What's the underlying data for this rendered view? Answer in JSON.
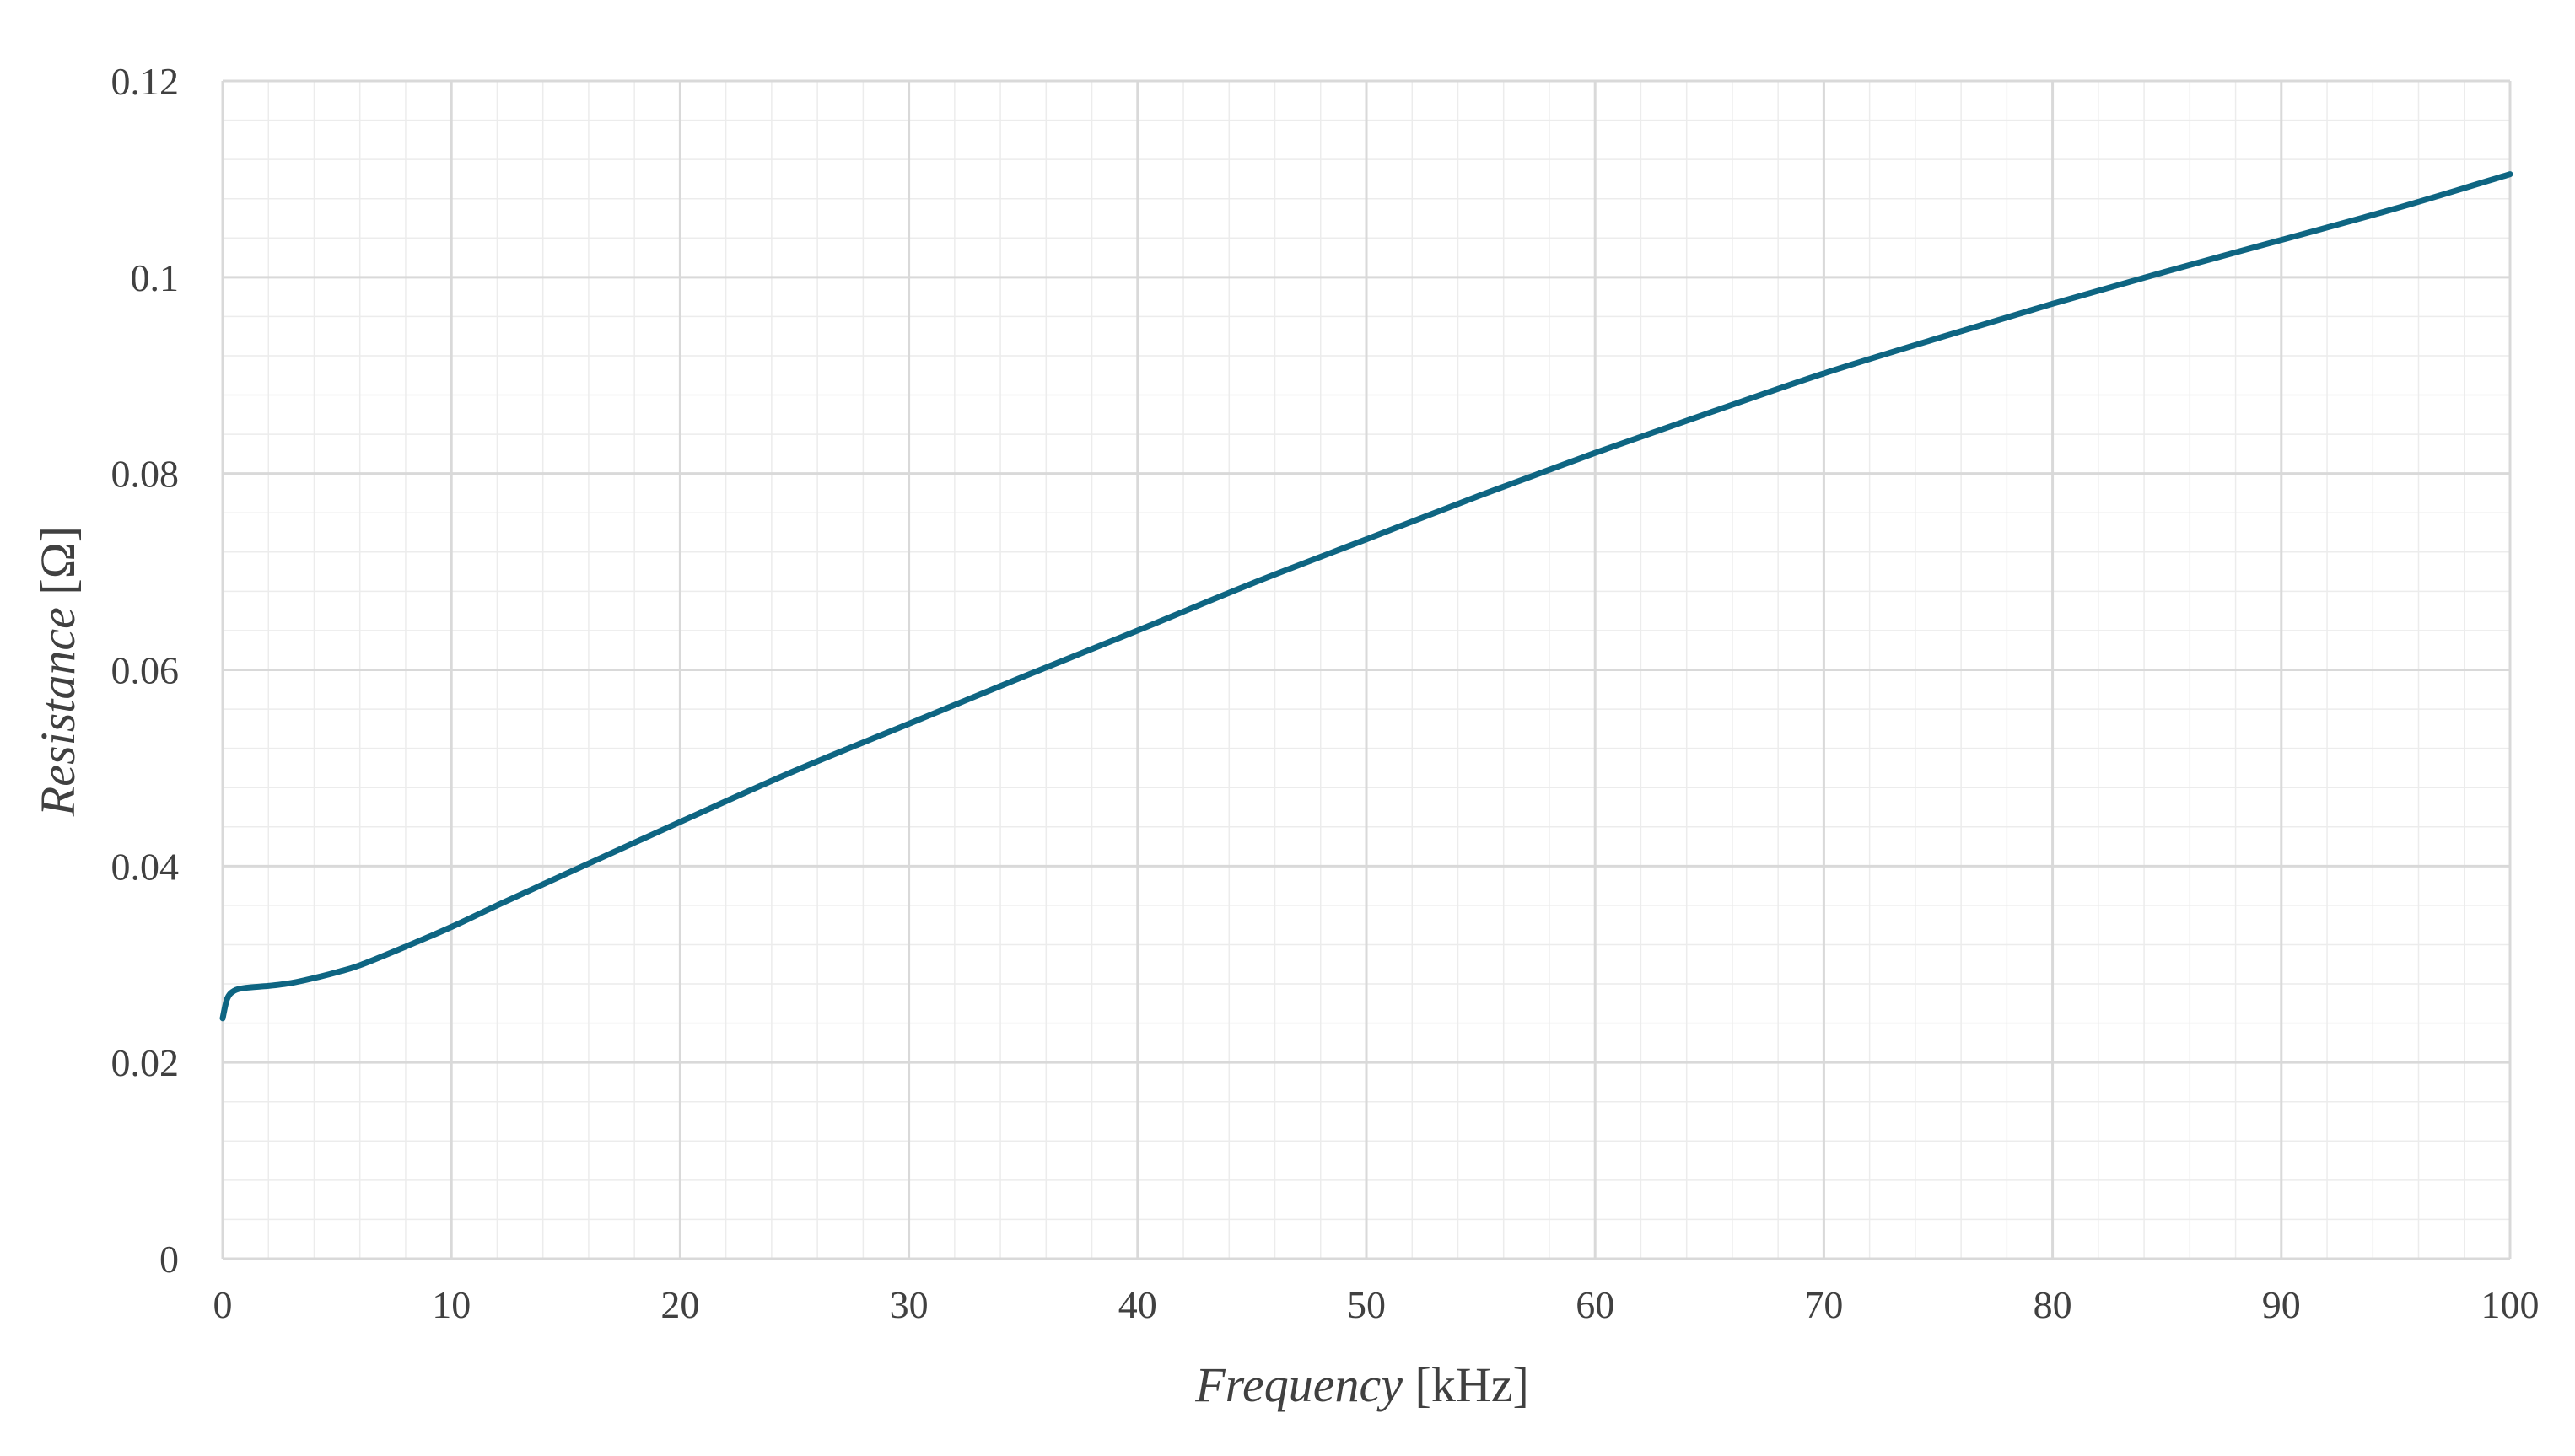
{
  "chart_data": {
    "type": "line",
    "title": "",
    "xlabel": {
      "italic": "Frequency",
      "unit": " [kHz]"
    },
    "ylabel": {
      "italic": "Resistance",
      "unit": " [Ω]"
    },
    "xlim": [
      0,
      100
    ],
    "ylim": [
      0,
      0.12
    ],
    "x_ticks": [
      "0",
      "10",
      "20",
      "30",
      "40",
      "50",
      "60",
      "70",
      "80",
      "90",
      "100"
    ],
    "y_ticks": [
      "0",
      "0.02",
      "0.04",
      "0.06",
      "0.08",
      "0.1",
      "0.12"
    ],
    "grid": {
      "major": true,
      "minor": true
    },
    "legend": "none",
    "colors": {
      "line": "#0e6582",
      "grid_major": "#d9d9d9",
      "grid_minor": "#ececec",
      "text": "#404040"
    },
    "series": [
      {
        "x": [
          0,
          0.2,
          0.5,
          1,
          2,
          3,
          4,
          5,
          6,
          8,
          10,
          12,
          15,
          20,
          25,
          30,
          35,
          40,
          45,
          50,
          55,
          60,
          65,
          70,
          75,
          80,
          85,
          90,
          95,
          100
        ],
        "y": [
          0.0245,
          0.0265,
          0.0273,
          0.0276,
          0.0278,
          0.0281,
          0.0286,
          0.0292,
          0.0299,
          0.0318,
          0.0338,
          0.036,
          0.0392,
          0.0445,
          0.0497,
          0.0545,
          0.0593,
          0.064,
          0.0688,
          0.0733,
          0.0778,
          0.0821,
          0.0862,
          0.0902,
          0.0938,
          0.0973,
          0.1006,
          0.1038,
          0.107,
          0.1105
        ]
      }
    ]
  }
}
